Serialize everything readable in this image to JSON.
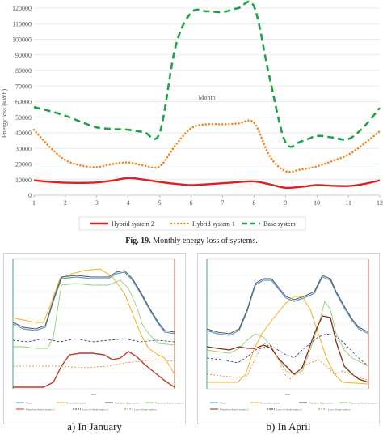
{
  "chart_data": {
    "type": "line",
    "title": "",
    "xlabel": "Month",
    "ylabel": "Energy loss (kWh)",
    "x": [
      1,
      1.5,
      2,
      2.5,
      3,
      3.5,
      4,
      4.5,
      5,
      5.5,
      6,
      6.5,
      7,
      7.5,
      8,
      8.5,
      9,
      9.5,
      10,
      10.5,
      11,
      11.5,
      12
    ],
    "xticks": [
      "1",
      "2",
      "3",
      "4",
      "5",
      "6",
      "7",
      "8",
      "9",
      "10",
      "11",
      "12"
    ],
    "xlim": [
      1,
      12
    ],
    "ylim": [
      0,
      120000
    ],
    "yticks": [
      "0",
      "10000",
      "20000",
      "30000",
      "40000",
      "50000",
      "60000",
      "70000",
      "80000",
      "90000",
      "100000",
      "110000",
      "120000"
    ],
    "grid": true,
    "legend_position": "bottom",
    "series": [
      {
        "name": "Hybrid system 2",
        "color": "#e02020",
        "style": "solid",
        "values": [
          9500,
          8600,
          8000,
          7900,
          8200,
          9400,
          11000,
          10000,
          8500,
          7300,
          6500,
          7000,
          7700,
          8400,
          8900,
          7000,
          4800,
          5400,
          6500,
          6100,
          5900,
          7200,
          9500
        ]
      },
      {
        "name": "Hybrid system 1",
        "color": "#f08a24",
        "style": "dotted",
        "values": [
          42000,
          31000,
          22500,
          19000,
          18000,
          20000,
          21000,
          19000,
          18500,
          32000,
          43000,
          45500,
          45500,
          46000,
          46500,
          25000,
          15500,
          16500,
          18500,
          22000,
          26000,
          33000,
          41000
        ]
      },
      {
        "name": "Base system",
        "color": "#1fa347",
        "style": "dashed",
        "values": [
          56500,
          54000,
          51000,
          47000,
          43500,
          42500,
          42000,
          40500,
          40000,
          95000,
          117000,
          118000,
          117500,
          120000,
          121000,
          75000,
          34000,
          34500,
          38000,
          37000,
          36000,
          44000,
          56000
        ]
      }
    ]
  },
  "figure_caption": {
    "label": "Fig. 19.",
    "text": "Monthly energy loss of systems."
  },
  "subfigures": [
    {
      "caption": "a) In January",
      "legend": [
        "Pload",
        "Renewable power",
        "Pbaseline Base system",
        "Pbaseline Hybrid system 1",
        "Pbaseline Hybrid system 2",
        "Loss of Hybrid system 1",
        "Loss of base system"
      ]
    },
    {
      "caption": "b) In April",
      "legend": [
        "Pload",
        "Renewable power",
        "Pbaseline Base system",
        "Pbaseline Hybrid system 1",
        "Pbaseline Hybrid system 2",
        "Loss of Hybrid system 1",
        "Loss of base system"
      ]
    }
  ]
}
